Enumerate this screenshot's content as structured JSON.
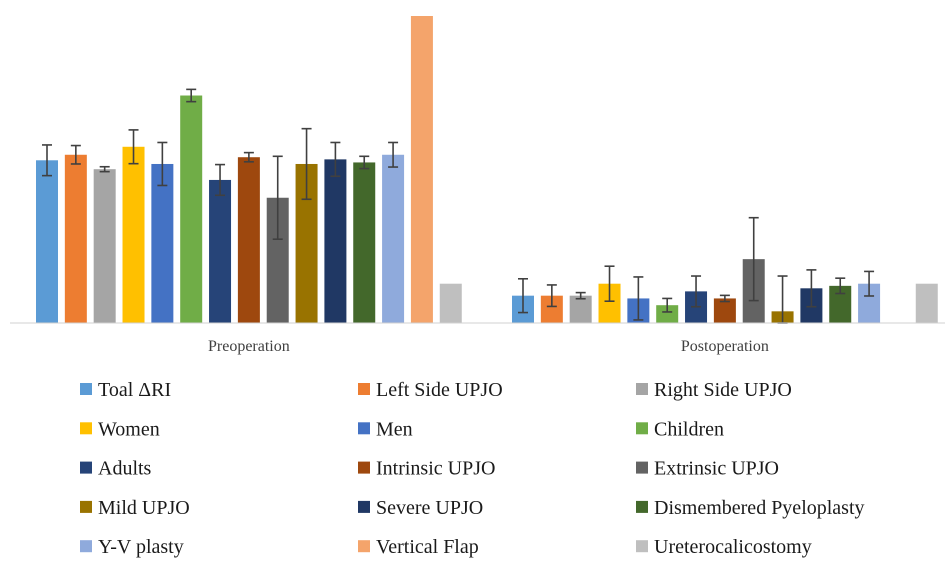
{
  "chart_data": {
    "type": "bar",
    "title": "",
    "xlabel": "",
    "ylabel": "",
    "ylim": [
      0,
      100
    ],
    "grid": false,
    "legend_position": "bottom",
    "categories": [
      "Preoperation",
      "Postoperation"
    ],
    "series": [
      {
        "name": "Toal ΔRI",
        "color": "#5B9BD5",
        "values": [
          53.0,
          8.9
        ],
        "error": [
          5.0,
          5.5
        ]
      },
      {
        "name": "Left Side UPJO",
        "color": "#ED7D31",
        "values": [
          54.8,
          8.9
        ],
        "error": [
          3.0,
          3.5
        ]
      },
      {
        "name": "Right Side UPJO",
        "color": "#A5A5A5",
        "values": [
          50.1,
          8.9
        ],
        "error": [
          0.8,
          1.0
        ]
      },
      {
        "name": "Women",
        "color": "#FFC000",
        "values": [
          57.4,
          12.8
        ],
        "error": [
          5.5,
          5.7
        ]
      },
      {
        "name": "Men",
        "color": "#4472C4",
        "values": [
          51.8,
          8.0
        ],
        "error": [
          7.0,
          7.0
        ]
      },
      {
        "name": "Children",
        "color": "#70AD47",
        "values": [
          74.1,
          5.8
        ],
        "error": [
          2.0,
          2.2
        ]
      },
      {
        "name": "Adults",
        "color": "#264478",
        "values": [
          46.6,
          10.3
        ],
        "error": [
          5.0,
          5.0
        ]
      },
      {
        "name": "Intrinsic UPJO",
        "color": "#9E480E",
        "values": [
          54.0,
          8.0
        ],
        "error": [
          1.5,
          1.0
        ]
      },
      {
        "name": "Extrinsic UPJO",
        "color": "#636363",
        "values": [
          40.8,
          20.8
        ],
        "error": [
          13.5,
          13.5
        ]
      },
      {
        "name": "Mild UPJO",
        "color": "#997300",
        "values": [
          51.8,
          3.8
        ],
        "error": [
          11.5,
          11.5
        ]
      },
      {
        "name": "Severe UPJO",
        "color": "#203864",
        "values": [
          53.3,
          11.3
        ],
        "error": [
          5.5,
          6.0
        ]
      },
      {
        "name": "Dismembered Pyeloplasty",
        "color": "#43682B",
        "values": [
          52.3,
          12.1
        ],
        "error": [
          2.0,
          2.5
        ]
      },
      {
        "name": "Y-V plasty",
        "color": "#8FAADC",
        "values": [
          54.8,
          12.8
        ],
        "error": [
          4.0,
          4.0
        ]
      },
      {
        "name": "Vertical Flap",
        "color": "#F4A46B",
        "values": [
          100.0,
          null
        ],
        "error": [
          0,
          0
        ]
      },
      {
        "name": "Ureterocalicostomy",
        "color": "#BFBFBF",
        "values": [
          12.8,
          12.8
        ],
        "error": [
          0,
          0
        ]
      }
    ]
  }
}
